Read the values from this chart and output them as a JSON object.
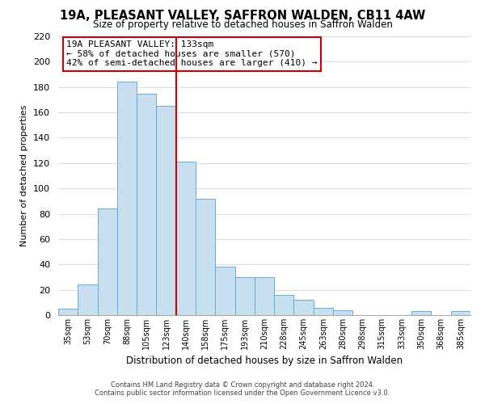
{
  "title": "19A, PLEASANT VALLEY, SAFFRON WALDEN, CB11 4AW",
  "subtitle": "Size of property relative to detached houses in Saffron Walden",
  "xlabel": "Distribution of detached houses by size in Saffron Walden",
  "ylabel": "Number of detached properties",
  "bar_labels": [
    "35sqm",
    "53sqm",
    "70sqm",
    "88sqm",
    "105sqm",
    "123sqm",
    "140sqm",
    "158sqm",
    "175sqm",
    "193sqm",
    "210sqm",
    "228sqm",
    "245sqm",
    "263sqm",
    "280sqm",
    "298sqm",
    "315sqm",
    "333sqm",
    "350sqm",
    "368sqm",
    "385sqm"
  ],
  "bar_values": [
    5,
    24,
    84,
    184,
    175,
    165,
    121,
    92,
    38,
    30,
    30,
    16,
    12,
    6,
    4,
    0,
    0,
    0,
    3,
    0,
    3
  ],
  "bar_color": "#c8dff0",
  "bar_edge_color": "#6aaad4",
  "reference_line_color": "#cc0000",
  "ylim": [
    0,
    220
  ],
  "yticks": [
    0,
    20,
    40,
    60,
    80,
    100,
    120,
    140,
    160,
    180,
    200,
    220
  ],
  "annotation_title": "19A PLEASANT VALLEY: 133sqm",
  "annotation_line1": "← 58% of detached houses are smaller (570)",
  "annotation_line2": "42% of semi-detached houses are larger (410) →",
  "annotation_box_color": "#ffffff",
  "annotation_box_edge_color": "#cc0000",
  "footer_line1": "Contains HM Land Registry data © Crown copyright and database right 2024.",
  "footer_line2": "Contains public sector information licensed under the Open Government Licence v3.0.",
  "background_color": "#ffffff",
  "grid_color": "#d0d8e0"
}
